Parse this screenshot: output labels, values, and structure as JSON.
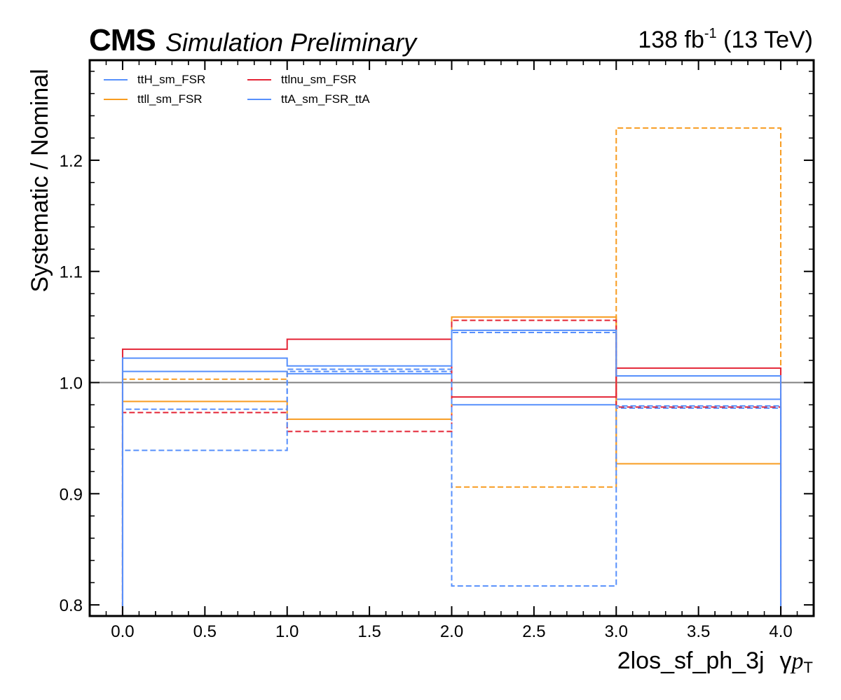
{
  "header": {
    "logo": "CMS",
    "subtitle": "Simulation Preliminary",
    "lumi_prefix": "138 fb",
    "lumi_exp": "-1",
    "lumi_suffix": " (13 TeV)"
  },
  "axes": {
    "ylabel": "Systematic / Nominal",
    "xlabel_region": "2los_sf_ph_3j",
    "xlabel_symbol": "γ",
    "xlabel_var": "p",
    "xlabel_sub": "T"
  },
  "legend": {
    "items": [
      {
        "label": "ttH_sm_FSR",
        "color": "#5790fc"
      },
      {
        "label": "ttlnu_sm_FSR",
        "color": "#e42536"
      },
      {
        "label": "ttll_sm_FSR",
        "color": "#f89c20"
      },
      {
        "label": "ttA_sm_FSR_ttA",
        "color": "#5790fc"
      }
    ]
  },
  "chart_data": {
    "type": "line",
    "style": "step-histogram",
    "xlim": [
      -0.2,
      4.2
    ],
    "ylim": [
      0.79,
      1.29
    ],
    "bin_edges": [
      0,
      1,
      2,
      3,
      4
    ],
    "xticks": [
      0.0,
      0.5,
      1.0,
      1.5,
      2.0,
      2.5,
      3.0,
      3.5,
      4.0
    ],
    "xtick_labels": [
      "0.0",
      "0.5",
      "1.0",
      "1.5",
      "2.0",
      "2.5",
      "3.0",
      "3.5",
      "4.0"
    ],
    "yticks": [
      0.8,
      0.9,
      1.0,
      1.1,
      1.2
    ],
    "ytick_labels": [
      "0.8",
      "0.9",
      "1.0",
      "1.1",
      "1.2"
    ],
    "reference_line": {
      "y": 1.0,
      "color": "#808080"
    },
    "series": [
      {
        "name": "ttH_sm_FSR",
        "variation": "up",
        "color": "#5790fc",
        "dashed": false,
        "values": [
          1.01,
          1.008,
          0.98,
          0.985
        ]
      },
      {
        "name": "ttH_sm_FSR",
        "variation": "down",
        "color": "#5790fc",
        "dashed": true,
        "values": [
          0.976,
          1.01,
          1.045,
          0.977
        ]
      },
      {
        "name": "ttll_sm_FSR",
        "variation": "up",
        "color": "#f89c20",
        "dashed": false,
        "values": [
          0.983,
          0.967,
          1.059,
          0.927
        ]
      },
      {
        "name": "ttll_sm_FSR",
        "variation": "down",
        "color": "#f89c20",
        "dashed": true,
        "values": [
          1.003,
          1.012,
          0.906,
          1.229
        ]
      },
      {
        "name": "ttlnu_sm_FSR",
        "variation": "up",
        "color": "#e42536",
        "dashed": false,
        "values": [
          1.03,
          1.039,
          0.987,
          1.013
        ]
      },
      {
        "name": "ttlnu_sm_FSR",
        "variation": "down",
        "color": "#e42536",
        "dashed": true,
        "values": [
          0.973,
          0.956,
          1.056,
          0.978
        ]
      },
      {
        "name": "ttA_sm_FSR_ttA",
        "variation": "up",
        "color": "#5790fc",
        "dashed": false,
        "values": [
          1.022,
          1.015,
          1.047,
          1.006
        ]
      },
      {
        "name": "ttA_sm_FSR_ttA",
        "variation": "down",
        "color": "#5790fc",
        "dashed": true,
        "values": [
          0.939,
          1.012,
          0.817,
          0.979
        ]
      }
    ]
  }
}
